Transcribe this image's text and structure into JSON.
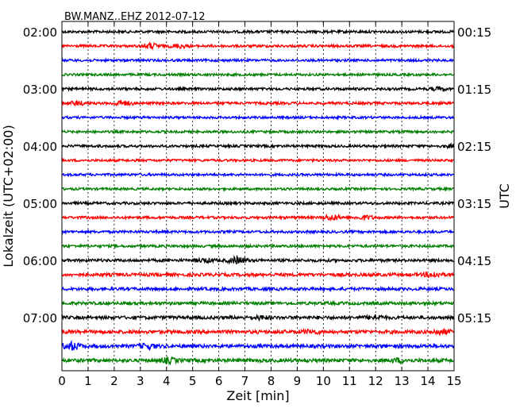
{
  "chart_data": {
    "type": "line",
    "title": "BW.MANZ..EHZ 2012-07-12",
    "xlabel": "Zeit  [min]",
    "ylabel_left": "Lokalzeit (UTC+02:00)",
    "ylabel_right": "UTC",
    "xlim": [
      0,
      15
    ],
    "x_ticks": [
      "0",
      "1",
      "2",
      "3",
      "4",
      "5",
      "6",
      "7",
      "8",
      "9",
      "10",
      "11",
      "12",
      "13",
      "14",
      "15"
    ],
    "grid": "vertical dotted",
    "left_tick_labels": [
      "02:00",
      "03:00",
      "04:00",
      "05:00",
      "06:00",
      "07:00"
    ],
    "right_tick_labels": [
      "00:15",
      "01:15",
      "02:15",
      "03:15",
      "04:15",
      "05:15"
    ],
    "trace_colors": [
      "#000000",
      "#ff0000",
      "#0000ff",
      "#008000"
    ],
    "trace_count": 24,
    "noise_levels": [
      0.6,
      0.6,
      0.5,
      0.5,
      0.6,
      0.6,
      0.5,
      0.5,
      0.6,
      0.5,
      0.5,
      0.5,
      0.6,
      0.6,
      0.6,
      0.6,
      0.8,
      1.0,
      0.9,
      0.9,
      1.0,
      1.2,
      1.2,
      1.2
    ],
    "events": [
      {
        "trace": 1,
        "minute": 3.4,
        "amp": 3
      },
      {
        "trace": 1,
        "minute": 4.5,
        "amp": 2
      },
      {
        "trace": 4,
        "minute": 14.4,
        "amp": 1.5
      },
      {
        "trace": 5,
        "minute": 0.6,
        "amp": 2
      },
      {
        "trace": 5,
        "minute": 2.3,
        "amp": 3
      },
      {
        "trace": 8,
        "minute": 14.9,
        "amp": 1.5
      },
      {
        "trace": 13,
        "minute": 10.3,
        "amp": 3
      },
      {
        "trace": 13,
        "minute": 11.6,
        "amp": 2.2
      },
      {
        "trace": 16,
        "minute": 5.5,
        "amp": 2
      },
      {
        "trace": 16,
        "minute": 6.7,
        "amp": 4
      },
      {
        "trace": 17,
        "minute": 14.2,
        "amp": 3
      },
      {
        "trace": 20,
        "minute": 12,
        "amp": 2.5
      },
      {
        "trace": 20,
        "minute": 7.6,
        "amp": 1.8
      },
      {
        "trace": 21,
        "minute": 14.5,
        "amp": 3
      },
      {
        "trace": 21,
        "minute": 9.5,
        "amp": 2
      },
      {
        "trace": 22,
        "minute": 0.4,
        "amp": 4
      },
      {
        "trace": 22,
        "minute": 3.3,
        "amp": 2.5
      },
      {
        "trace": 23,
        "minute": 4.1,
        "amp": 2.5
      },
      {
        "trace": 23,
        "minute": 12.9,
        "amp": 2
      }
    ]
  }
}
